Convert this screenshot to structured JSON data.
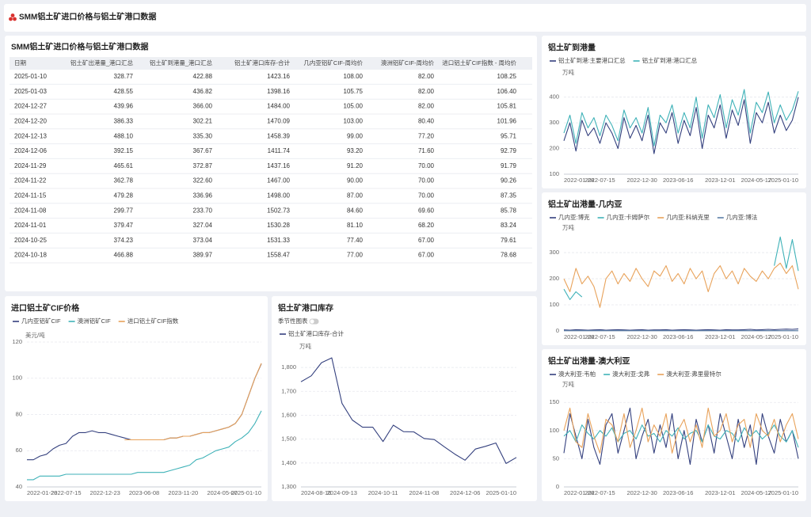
{
  "header": {
    "title": "SMM铝土矿进口价格与铝土矿港口数据"
  },
  "table": {
    "title": "SMM铝土矿进口价格与铝土矿港口数据",
    "columns": [
      "日期",
      "铝土矿出港量_港口汇总",
      "铝土矿到港量_港口汇总",
      "铝土矿港口库存-合计",
      "几内亚铝矿CIF-周均价",
      "澳洲铝矿CIF-周均价",
      "进口铝土矿CIF指数 - 周均价"
    ],
    "rows": [
      [
        "2025-01-10",
        "328.77",
        "422.88",
        "1423.16",
        "108.00",
        "82.00",
        "108.25"
      ],
      [
        "2025-01-03",
        "428.55",
        "436.82",
        "1398.16",
        "105.75",
        "82.00",
        "106.40"
      ],
      [
        "2024-12-27",
        "439.96",
        "366.00",
        "1484.00",
        "105.00",
        "82.00",
        "105.81"
      ],
      [
        "2024-12-20",
        "386.33",
        "302.21",
        "1470.09",
        "103.00",
        "80.40",
        "101.96"
      ],
      [
        "2024-12-13",
        "488.10",
        "335.30",
        "1458.39",
        "99.00",
        "77.20",
        "95.71"
      ],
      [
        "2024-12-06",
        "392.15",
        "367.67",
        "1411.74",
        "93.20",
        "71.60",
        "92.79"
      ],
      [
        "2024-11-29",
        "465.61",
        "372.87",
        "1437.16",
        "91.20",
        "70.00",
        "91.79"
      ],
      [
        "2024-11-22",
        "362.78",
        "322.60",
        "1467.00",
        "90.00",
        "70.00",
        "90.26"
      ],
      [
        "2024-11-15",
        "479.28",
        "336.96",
        "1498.00",
        "87.00",
        "70.00",
        "87.35"
      ],
      [
        "2024-11-08",
        "299.77",
        "233.70",
        "1502.73",
        "84.60",
        "69.60",
        "85.78"
      ],
      [
        "2024-11-01",
        "379.47",
        "327.04",
        "1530.28",
        "81.10",
        "68.20",
        "83.24"
      ],
      [
        "2024-10-25",
        "374.23",
        "373.04",
        "1531.33",
        "77.40",
        "67.00",
        "79.61"
      ],
      [
        "2024-10-18",
        "466.88",
        "389.97",
        "1558.47",
        "77.00",
        "67.00",
        "78.68"
      ]
    ]
  },
  "chart_data": [
    {
      "type": "line",
      "title": "铝土矿到港量",
      "ylabel": "万吨",
      "categories": [
        "2022-01-28",
        null,
        null,
        null,
        null,
        null,
        "2022-07-15",
        null,
        null,
        null,
        null,
        null,
        null,
        "2022-12-30",
        null,
        null,
        null,
        null,
        null,
        "2023-06-16",
        null,
        null,
        null,
        null,
        null,
        null,
        "2023-12-01",
        null,
        null,
        null,
        null,
        null,
        "2024-05-17",
        null,
        null,
        null,
        null,
        null,
        null,
        "2025-01-10"
      ],
      "ylim": [
        100,
        470
      ],
      "yticks": [
        100,
        200,
        300,
        400
      ],
      "grid": true,
      "series": [
        {
          "name": "铝土矿到港:主要港口汇总",
          "color": "#34407e",
          "values": [
            230,
            300,
            190,
            310,
            250,
            280,
            220,
            300,
            260,
            200,
            320,
            240,
            290,
            230,
            330,
            180,
            300,
            260,
            340,
            220,
            310,
            250,
            360,
            200,
            330,
            280,
            370,
            240,
            350,
            290,
            390,
            220,
            340,
            300,
            380,
            260,
            330,
            270,
            310,
            400
          ]
        },
        {
          "name": "铝土矿到港:港口汇总",
          "color": "#3fb2b8",
          "values": [
            260,
            330,
            220,
            340,
            280,
            320,
            250,
            330,
            290,
            230,
            350,
            280,
            320,
            260,
            360,
            210,
            330,
            300,
            370,
            260,
            340,
            280,
            400,
            240,
            370,
            320,
            410,
            280,
            390,
            330,
            430,
            260,
            380,
            340,
            420,
            300,
            370,
            310,
            350,
            422.88
          ]
        }
      ]
    },
    {
      "type": "line",
      "title": "铝土矿出港量-几内亚",
      "ylabel": "万吨",
      "categories": [
        "2022-01-28",
        null,
        null,
        null,
        null,
        null,
        "2022-07-15",
        null,
        null,
        null,
        null,
        null,
        null,
        "2022-12-30",
        null,
        null,
        null,
        null,
        null,
        "2023-06-16",
        null,
        null,
        null,
        null,
        null,
        null,
        "2023-12-01",
        null,
        null,
        null,
        null,
        null,
        "2024-05-17",
        null,
        null,
        null,
        null,
        null,
        null,
        "2025-01-10"
      ],
      "ylim": [
        0,
        370
      ],
      "yticks": [
        0,
        100,
        200,
        300
      ],
      "grid": true,
      "series": [
        {
          "name": "几内亚:博克",
          "color": "#34407e",
          "values": [
            4,
            3,
            5,
            4,
            3,
            4,
            5,
            3,
            4,
            5,
            4,
            3,
            4,
            5,
            3,
            4,
            4,
            5,
            3,
            4,
            5,
            4,
            3,
            4,
            5,
            4,
            3,
            5,
            4,
            4,
            5,
            6,
            4,
            5,
            6,
            5,
            6,
            7,
            6,
            8
          ]
        },
        {
          "name": "几内亚:卡姆萨尔",
          "color": "#3fb2b8",
          "values": [
            160,
            120,
            150,
            130,
            null,
            null,
            null,
            null,
            null,
            null,
            null,
            null,
            null,
            null,
            null,
            null,
            null,
            null,
            null,
            null,
            null,
            null,
            null,
            null,
            null,
            null,
            null,
            null,
            null,
            null,
            null,
            null,
            null,
            null,
            null,
            250,
            360,
            240,
            350,
            230
          ]
        },
        {
          "name": "几内亚:科纳克里",
          "color": "#e8a25a",
          "values": [
            200,
            150,
            240,
            180,
            210,
            170,
            90,
            200,
            230,
            180,
            220,
            190,
            240,
            200,
            170,
            230,
            210,
            250,
            190,
            220,
            180,
            240,
            200,
            230,
            150,
            220,
            250,
            200,
            230,
            180,
            240,
            210,
            190,
            230,
            200,
            240,
            260,
            220,
            250,
            160
          ]
        },
        {
          "name": "几内亚:博法",
          "color": "#5b7fa6",
          "values": [
            1,
            1,
            1,
            1,
            1,
            1,
            1,
            1,
            1,
            1,
            1,
            1,
            1,
            1,
            1,
            1,
            1,
            1,
            1,
            1,
            1,
            1,
            1,
            1,
            1,
            1,
            1,
            1,
            1,
            1,
            1,
            1,
            1,
            1,
            1,
            1,
            1,
            1,
            1,
            1
          ]
        }
      ]
    },
    {
      "type": "line",
      "title": "铝土矿出港量-澳大利亚",
      "ylabel": "万吨",
      "categories": [
        "2022-01-28",
        null,
        null,
        null,
        null,
        null,
        "2022-07-15",
        null,
        null,
        null,
        null,
        null,
        null,
        "2022-12-30",
        null,
        null,
        null,
        null,
        null,
        "2023-06-16",
        null,
        null,
        null,
        null,
        null,
        null,
        "2023-12-01",
        null,
        null,
        null,
        null,
        null,
        "2024-05-17",
        null,
        null,
        null,
        null,
        null,
        null,
        "2025-01-10"
      ],
      "ylim": [
        0,
        170
      ],
      "yticks": [
        0,
        50,
        100,
        150
      ],
      "grid": true,
      "series": [
        {
          "name": "澳大利亚:韦帕",
          "color": "#34407e",
          "values": [
            60,
            130,
            90,
            50,
            120,
            70,
            40,
            110,
            130,
            60,
            100,
            140,
            50,
            90,
            120,
            60,
            110,
            70,
            130,
            50,
            100,
            40,
            120,
            80,
            110,
            60,
            130,
            90,
            50,
            120,
            70,
            110,
            40,
            130,
            90,
            60,
            120,
            80,
            100,
            50
          ]
        },
        {
          "name": "澳大利亚:戈弗",
          "color": "#3fb2b8",
          "values": [
            90,
            100,
            80,
            110,
            95,
            85,
            100,
            90,
            105,
            80,
            95,
            100,
            85,
            110,
            90,
            95,
            80,
            100,
            90,
            105,
            85,
            95,
            100,
            80,
            110,
            90,
            85,
            100,
            95,
            80,
            105,
            90,
            100,
            85,
            95,
            110,
            90,
            80,
            100,
            70
          ]
        },
        {
          "name": "澳大利亚:弗里曼特尔",
          "color": "#e8a25a",
          "values": [
            100,
            140,
            80,
            70,
            130,
            90,
            60,
            120,
            110,
            80,
            130,
            70,
            100,
            140,
            80,
            110,
            90,
            130,
            60,
            100,
            120,
            80,
            110,
            70,
            140,
            90,
            100,
            130,
            80,
            110,
            120,
            70,
            130,
            100,
            90,
            120,
            80,
            110,
            130,
            85
          ]
        }
      ]
    },
    {
      "type": "line",
      "title": "进口铝土矿CIF价格",
      "ylabel": "美元/吨",
      "categories": [
        "2022-01-28",
        null,
        null,
        null,
        null,
        null,
        "2022-07-15",
        null,
        null,
        null,
        null,
        null,
        "2022-12-23",
        null,
        null,
        null,
        null,
        null,
        "2023-06-08",
        null,
        null,
        null,
        null,
        null,
        "2023-11-20",
        null,
        null,
        null,
        null,
        null,
        "2024-05-07",
        null,
        null,
        null,
        null,
        null,
        "2025-01-10"
      ],
      "ylim": [
        40,
        120
      ],
      "yticks": [
        40,
        60,
        80,
        100,
        120
      ],
      "grid": true,
      "series": [
        {
          "name": "几内亚铝矿CIF",
          "color": "#34407e",
          "values": [
            55,
            55,
            57,
            58,
            61,
            63,
            64,
            68,
            70,
            70,
            71,
            70,
            70,
            69,
            68,
            67,
            66,
            66,
            66,
            66,
            66,
            66,
            67,
            67,
            68,
            68,
            69,
            70,
            70,
            71,
            72,
            73,
            75,
            80,
            90,
            100,
            108
          ]
        },
        {
          "name": "澳洲铝矿CIF",
          "color": "#3fb2b8",
          "values": [
            44,
            44,
            46,
            46,
            46,
            46,
            47,
            47,
            47,
            47,
            47,
            47,
            47,
            47,
            47,
            47,
            47,
            48,
            48,
            48,
            48,
            48,
            49,
            50,
            51,
            52,
            55,
            56,
            58,
            60,
            61,
            62,
            65,
            67,
            70,
            75,
            82
          ]
        },
        {
          "name": "进口铝土矿CIF指数",
          "color": "#e8a25a",
          "values": [
            null,
            null,
            null,
            null,
            null,
            null,
            null,
            null,
            null,
            null,
            null,
            null,
            null,
            null,
            null,
            66,
            66,
            66,
            66,
            66,
            66,
            66,
            67,
            67,
            68,
            68,
            69,
            70,
            70,
            71,
            72,
            73,
            75,
            80,
            90,
            100,
            108.25
          ]
        }
      ]
    },
    {
      "type": "line",
      "title": "铝土矿港口库存",
      "toggle_label": "季节性图表",
      "ylabel": "万吨",
      "categories": [
        "2024-08-16",
        null,
        null,
        null,
        "2024-09-13",
        null,
        null,
        null,
        "2024-10-11",
        null,
        null,
        null,
        "2024-11-08",
        null,
        null,
        null,
        "2024-12-06",
        null,
        null,
        null,
        null,
        "2025-01-10"
      ],
      "ylim": [
        1300,
        1860
      ],
      "yticks": [
        {
          "value": 1300,
          "label": "1,300"
        },
        {
          "value": 1400,
          "label": "1,400"
        },
        {
          "value": 1500,
          "label": "1,500"
        },
        {
          "value": 1600,
          "label": "1,600"
        },
        {
          "value": 1700,
          "label": "1,700"
        },
        {
          "value": 1800,
          "label": "1,800"
        }
      ],
      "grid": true,
      "series": [
        {
          "name": "铝土矿港口库存-合计",
          "color": "#34407e",
          "values": [
            1740,
            1765,
            1820,
            1840,
            1650,
            1580,
            1550,
            1550,
            1490,
            1558.47,
            1531.33,
            1530.28,
            1502.73,
            1498,
            1467,
            1437.16,
            1411.74,
            1458.39,
            1470.09,
            1484,
            1398.16,
            1423.16
          ]
        }
      ]
    }
  ]
}
